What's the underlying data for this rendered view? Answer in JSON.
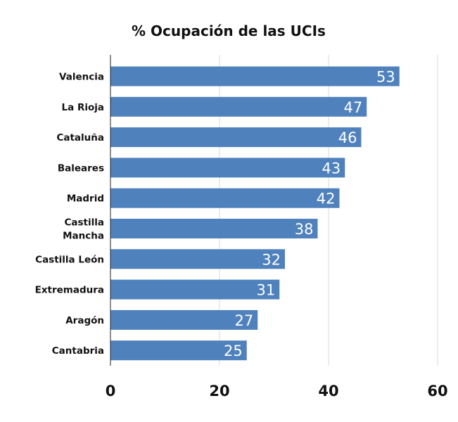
{
  "chart_data": {
    "type": "bar",
    "orientation": "horizontal",
    "title": "% Ocupación de las UCIs",
    "xlabel": "",
    "ylabel": "",
    "categories": [
      "Valencia",
      "La Rioja",
      "Cataluña",
      "Baleares",
      "Madrid",
      "Castilla\nMancha",
      "Castilla León",
      "Extremadura",
      "Aragón",
      "Cantabria"
    ],
    "values": [
      53,
      47,
      46,
      43,
      42,
      38,
      32,
      31,
      27,
      25
    ],
    "xlim": [
      0,
      60
    ],
    "xticks": [
      "0",
      "20",
      "40",
      "60"
    ],
    "grid": "vertical",
    "bar_color": "#4f81bd",
    "data_label_color": "#ffffff",
    "data_labels": "inside-end"
  }
}
